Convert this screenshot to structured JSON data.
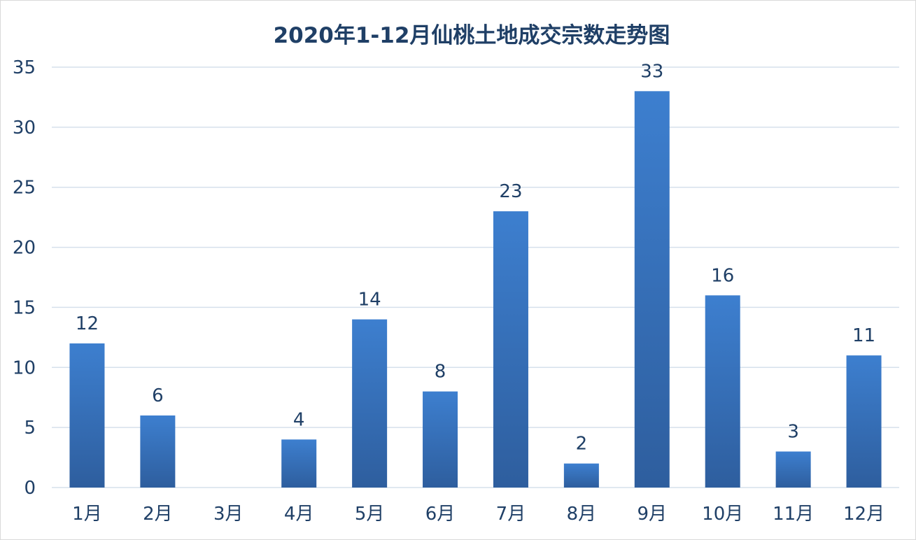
{
  "chart_data": {
    "type": "bar",
    "title": "2020年1-12月仙桃土地成交宗数走势图",
    "categories": [
      "1月",
      "2月",
      "3月",
      "4月",
      "5月",
      "6月",
      "7月",
      "8月",
      "9月",
      "10月",
      "11月",
      "12月"
    ],
    "values": [
      12,
      6,
      0,
      4,
      14,
      8,
      23,
      2,
      33,
      16,
      3,
      11
    ],
    "data_labels": [
      "12",
      "6",
      "",
      "4",
      "14",
      "8",
      "23",
      "2",
      "33",
      "16",
      "3",
      "11"
    ],
    "yticks": [
      "0",
      "5",
      "10",
      "15",
      "20",
      "25",
      "30",
      "35"
    ],
    "ylim": [
      0,
      35
    ],
    "grid": true,
    "legend": "none",
    "bar_color_top": "#3d7fcf",
    "bar_color_bottom": "#2e5e9e"
  }
}
